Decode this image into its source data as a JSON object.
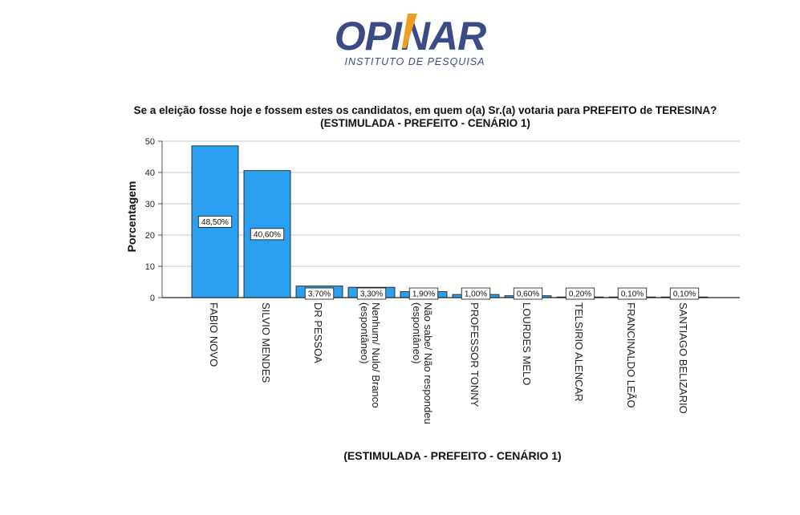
{
  "logo": {
    "brand": "OPINAR",
    "tagline": "INSTITUTO DE PESQUISA",
    "colors": {
      "navy": "#3c4a86",
      "accent": "#f0a020"
    }
  },
  "chart_data": {
    "type": "bar",
    "title": "Se a eleição fosse hoje e fossem estes os candidatos, em quem o(a) Sr.(a) votaria para PREFEITO de TERESINA? (ESTIMULADA - PREFEITO - CENÁRIO 1)",
    "xlabel": "(ESTIMULADA - PREFEITO - CENÁRIO 1)",
    "ylabel": "Porcentagem",
    "ylim": [
      0,
      50
    ],
    "yticks": [
      0,
      10,
      20,
      30,
      40,
      50
    ],
    "grid": true,
    "categories": [
      "FABIO NOVO",
      "SILVIO MENDES",
      "DR PESSOA",
      "Nenhum/ Nulo/ Branco (espontâneo)",
      "Não sabe/ Não respondeu (espontâneo)",
      "PROFESSOR TONNY",
      "LOURDES MELO",
      "TELSIRIO ALENCAR",
      "FRANCINALDO LEÃO",
      "SANTIAGO BELIZARIO"
    ],
    "category_lines": [
      [
        "FABIO NOVO"
      ],
      [
        "SILVIO MENDES"
      ],
      [
        "DR PESSOA"
      ],
      [
        "Nenhum/ Nulo/ Branco",
        "(espontâneo)"
      ],
      [
        "Não sabe/ Não respondeu",
        "(espontâneo)"
      ],
      [
        "PROFESSOR TONNY"
      ],
      [
        "LOURDES MELO"
      ],
      [
        "TELSIRIO ALENCAR"
      ],
      [
        "FRANCINALDO LEÃO"
      ],
      [
        "SANTIAGO BELIZARIO"
      ]
    ],
    "values": [
      48.5,
      40.6,
      3.7,
      3.3,
      1.9,
      1.0,
      0.6,
      0.2,
      0.1,
      0.1
    ],
    "data_labels": [
      "48,50%",
      "40,60%",
      "3,70%",
      "3,30%",
      "1,90%",
      "1,00%",
      "0,60%",
      "0,20%",
      "0,10%",
      "0,10%"
    ],
    "bar_color": "#2b9ff0"
  }
}
